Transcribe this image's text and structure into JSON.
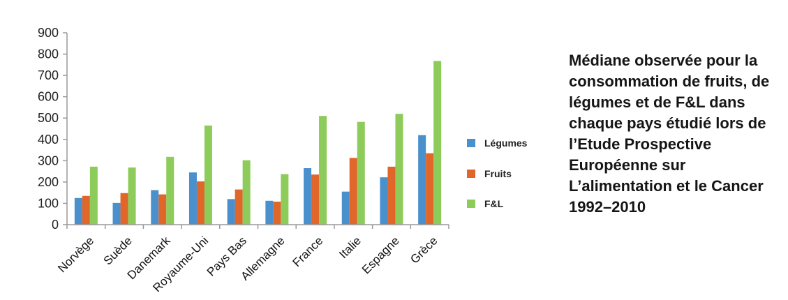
{
  "caption": "Médiane observée pour la consommation de fruits, de légumes et de F&L dans chaque pays étudié lors de l’Etude Prospective Européenne sur L’alimentation et le Cancer 1992–2010",
  "chart_data": {
    "type": "bar",
    "categories": [
      "Norvège",
      "Suède",
      "Danemark",
      "Royaume-Uni",
      "Pays Bas",
      "Allemagne",
      "France",
      "Italie",
      "Espagne",
      "Grèce"
    ],
    "series": [
      {
        "name": "Légumes",
        "color": "#4a90cd",
        "values": [
          125,
          102,
          162,
          245,
          120,
          112,
          265,
          155,
          222,
          420
        ]
      },
      {
        "name": "Fruits",
        "color": "#e0662a",
        "values": [
          135,
          148,
          142,
          203,
          165,
          108,
          235,
          313,
          272,
          335
        ]
      },
      {
        "name": "F&L",
        "color": "#8dcc5a",
        "values": [
          272,
          268,
          318,
          465,
          302,
          237,
          510,
          482,
          520,
          768
        ]
      }
    ],
    "yticks": [
      0,
      100,
      200,
      300,
      400,
      500,
      600,
      700,
      800,
      900
    ],
    "ylim": [
      0,
      900
    ],
    "title": "",
    "xlabel": "",
    "ylabel": "",
    "grid": false,
    "legend": "right"
  }
}
